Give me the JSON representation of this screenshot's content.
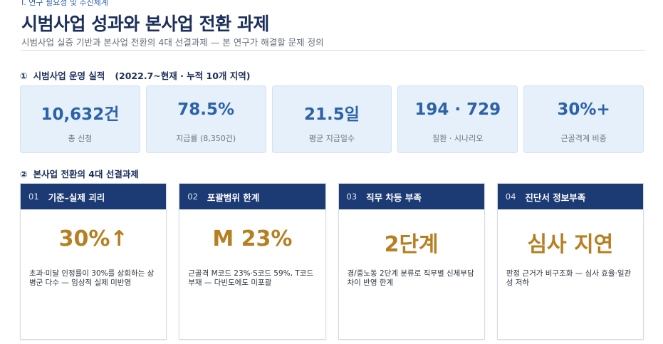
{
  "header": {
    "section_tag": "I. 연구 필요성 및 추진체계",
    "title": "시범사업 성과와 본사업 전환 과제",
    "subtitle": "시범사업 실증 기반과 본사업 전환의 4대 선결과제 — 본 연구가 해결할 문제 정의"
  },
  "section1": {
    "number": "①",
    "title": "시범사업 운영 실적",
    "sub": "(2022.7~현재 · 누적 10개 지역)",
    "stats": [
      {
        "value": "10,632건",
        "label": "총 신청"
      },
      {
        "value": "78.5%",
        "label": "지급률 (8,350건)"
      },
      {
        "value": "21.5일",
        "label": "평균 지급일수"
      },
      {
        "value": "194 · 729",
        "label": "질환 · 시나리오"
      },
      {
        "value": "30%+",
        "label": "근골격계 비중"
      }
    ]
  },
  "section2": {
    "number": "②",
    "title": "본사업 전환의 4대 선결과제",
    "tasks": [
      {
        "num": "01",
        "title": "기준–실제 괴리",
        "big": "30%↑",
        "desc": "초과·미달 인정률이 30%를 상회하는 상병군 다수 — 임상적 실제 미반영"
      },
      {
        "num": "02",
        "title": "포괄범위 한계",
        "big": "M 23%",
        "desc": "근골격 M코드 23%·S코드 59%, T코드 부재 — 다빈도에도 미포괄"
      },
      {
        "num": "03",
        "title": "직무 차등 부족",
        "big": "2단계",
        "desc": "경/중노동 2단계 분류로 직무별 신체부담 차이 반영 한계"
      },
      {
        "num": "04",
        "title": "진단서 정보부족",
        "big": "심사 지연",
        "desc": "판정 근거가 비구조화 — 심사 효율·일관성 저하"
      }
    ]
  }
}
